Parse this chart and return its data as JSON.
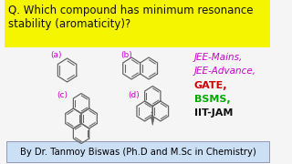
{
  "bg_color": "#f5f5f5",
  "yellow_bg": "#f5f500",
  "question_line1": "Q. Which compound has minimum resonance",
  "question_line2": "stability (aromaticity)?",
  "question_color": "#111111",
  "question_fontsize": 8.5,
  "label_a": "(a)",
  "label_b": "(b)",
  "label_c": "(c)",
  "label_d": "(d)",
  "label_color": "#cc00cc",
  "jee_mains": "JEE-Mains,",
  "jee_advance": "JEE-Advance,",
  "gate": "GATE,",
  "bsms": "BSMS,",
  "iitjam": "IIT-JAM",
  "jee_color": "#cc00cc",
  "gate_color": "#cc0000",
  "bsms_color": "#00aa00",
  "iitjam_color": "#111111",
  "footer_text": "By Dr. Tanmoy Biswas (Ph.D and M.Sc in Chemistry)",
  "footer_bg": "#cce0f5",
  "footer_color": "#000000",
  "footer_fontsize": 7.2,
  "mol_color": "#666666",
  "mol_lw": 0.9
}
